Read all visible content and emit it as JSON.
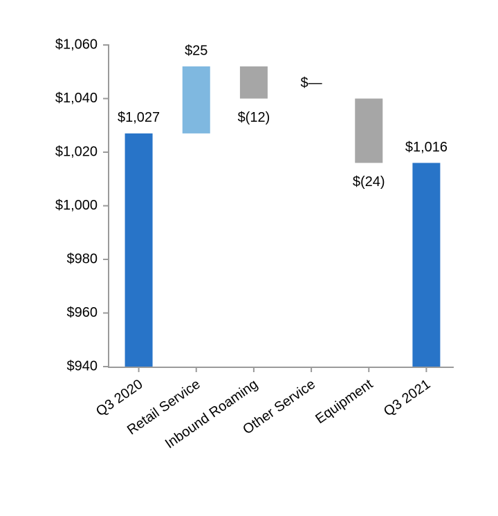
{
  "chart_data": {
    "type": "waterfall",
    "categories": [
      "Q3 2020",
      "Retail Service",
      "Inbound Roaming",
      "Other Service",
      "Equipment",
      "Q3 2021"
    ],
    "values": [
      1027,
      25,
      -12,
      0,
      -24,
      1016
    ],
    "value_labels": [
      "$1,027",
      "$25",
      "$(12)",
      "$—",
      "$(24)",
      "$1,016"
    ],
    "colors": [
      "#2874c8",
      "#7fb8e0",
      "#a6a6a6",
      "#a6a6a6",
      "#a6a6a6",
      "#2874c8"
    ],
    "ylim": [
      940,
      1060
    ],
    "yticks": [
      {
        "value": 940,
        "label": "$940"
      },
      {
        "value": 960,
        "label": "$960"
      },
      {
        "value": 980,
        "label": "$980"
      },
      {
        "value": 1000,
        "label": "$1,000"
      },
      {
        "value": 1020,
        "label": "$1,020"
      },
      {
        "value": 1040,
        "label": "$1,040"
      },
      {
        "value": 1060,
        "label": "$1,060"
      }
    ]
  }
}
